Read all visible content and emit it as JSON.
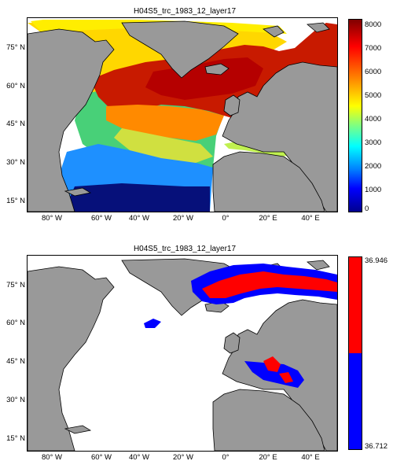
{
  "panels": [
    {
      "title": "H04S5_trc_1983_12_layer17",
      "lat_ticks": [
        "75° N",
        "60° N",
        "45° N",
        "30° N",
        "15° N"
      ],
      "lon_ticks": [
        "80° W",
        "60° W",
        "40° W",
        "20° W",
        "0°",
        "20° E",
        "40° E"
      ],
      "colorbar": {
        "type": "continuous",
        "colormap": "jet",
        "range": [
          0,
          8000
        ],
        "ticks": [
          "8000",
          "7000",
          "6000",
          "5000",
          "4000",
          "3000",
          "2000",
          "1000",
          "0"
        ]
      }
    },
    {
      "title": "H04S5_trc_1983_12_layer17",
      "lat_ticks": [
        "75° N",
        "60° N",
        "45° N",
        "30° N",
        "15° N"
      ],
      "lon_ticks": [
        "80° W",
        "60° W",
        "40° W",
        "20° W",
        "0°",
        "20° E",
        "40° E"
      ],
      "colorbar": {
        "type": "binary",
        "colors": [
          "#ff0000",
          "#0000ff"
        ],
        "labels": [
          "36.946",
          "36.712"
        ]
      }
    }
  ],
  "colors": {
    "land": "#999999",
    "ocean_nodata": "#ffffff"
  }
}
